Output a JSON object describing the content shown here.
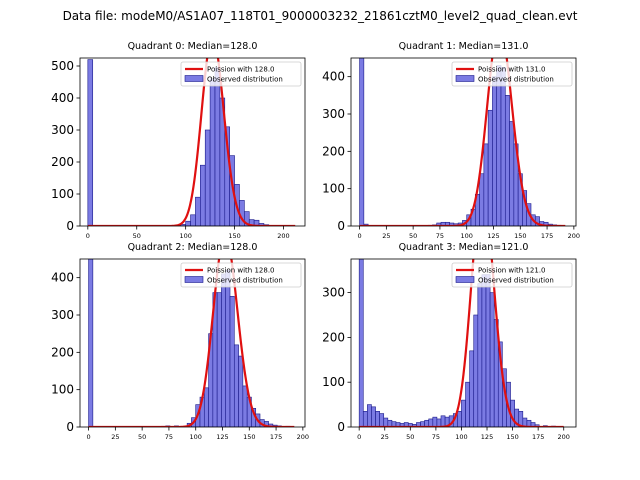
{
  "figure": {
    "suptitle": "Data file: modeM0/AS1A07_118T01_9000003232_21861cztM0_level2_quad_clean.evt"
  },
  "colors": {
    "bar_fill": "#7b7be3",
    "bar_edge": "#1a1a8a",
    "poisson_line": "#e01010",
    "axes": "#000000"
  },
  "chart_data": [
    {
      "type": "bar",
      "title": "Quadrant 0: Median=128.0",
      "median": 128.0,
      "xlim": [
        -8,
        222
      ],
      "ylim": [
        0,
        525
      ],
      "xticks": [
        0,
        50,
        100,
        150,
        200
      ],
      "yticks": [
        0,
        100,
        200,
        300,
        400,
        500
      ],
      "legend": {
        "position": "top-right",
        "line_label": "Poission with 128.0",
        "bar_label": "Observed distribution"
      },
      "bin_width": 5,
      "bins": [
        {
          "x": 0,
          "y": 520
        },
        {
          "x": 65,
          "y": 1
        },
        {
          "x": 75,
          "y": 1
        },
        {
          "x": 85,
          "y": 2
        },
        {
          "x": 90,
          "y": 2
        },
        {
          "x": 95,
          "y": 5
        },
        {
          "x": 100,
          "y": 15
        },
        {
          "x": 105,
          "y": 35
        },
        {
          "x": 110,
          "y": 90
        },
        {
          "x": 115,
          "y": 190
        },
        {
          "x": 120,
          "y": 300
        },
        {
          "x": 125,
          "y": 460
        },
        {
          "x": 130,
          "y": 495
        },
        {
          "x": 135,
          "y": 400
        },
        {
          "x": 140,
          "y": 310
        },
        {
          "x": 145,
          "y": 220
        },
        {
          "x": 150,
          "y": 130
        },
        {
          "x": 155,
          "y": 80
        },
        {
          "x": 160,
          "y": 45
        },
        {
          "x": 165,
          "y": 20
        },
        {
          "x": 170,
          "y": 18
        },
        {
          "x": 175,
          "y": 8
        },
        {
          "x": 180,
          "y": 4
        },
        {
          "x": 185,
          "y": 2
        },
        {
          "x": 195,
          "y": 1
        }
      ],
      "poisson_range": [
        0,
        212
      ]
    },
    {
      "type": "bar",
      "title": "Quadrant 1: Median=131.0",
      "median": 131.0,
      "xlim": [
        -8,
        202
      ],
      "ylim": [
        0,
        450
      ],
      "xticks": [
        0,
        25,
        50,
        75,
        100,
        125,
        150,
        175,
        200
      ],
      "yticks": [
        0,
        100,
        200,
        300,
        400
      ],
      "legend": {
        "position": "top-right",
        "line_label": "Poission with 131.0",
        "bar_label": "Observed distribution"
      },
      "bin_width": 4,
      "bins": [
        {
          "x": 0,
          "y": 450
        },
        {
          "x": 4,
          "y": 5
        },
        {
          "x": 64,
          "y": 2
        },
        {
          "x": 68,
          "y": 3
        },
        {
          "x": 72,
          "y": 8
        },
        {
          "x": 76,
          "y": 10
        },
        {
          "x": 80,
          "y": 10
        },
        {
          "x": 84,
          "y": 8
        },
        {
          "x": 88,
          "y": 6
        },
        {
          "x": 92,
          "y": 8
        },
        {
          "x": 96,
          "y": 15
        },
        {
          "x": 100,
          "y": 30
        },
        {
          "x": 104,
          "y": 45
        },
        {
          "x": 108,
          "y": 85
        },
        {
          "x": 112,
          "y": 140
        },
        {
          "x": 116,
          "y": 220
        },
        {
          "x": 120,
          "y": 310
        },
        {
          "x": 124,
          "y": 400
        },
        {
          "x": 128,
          "y": 430
        },
        {
          "x": 132,
          "y": 425
        },
        {
          "x": 136,
          "y": 350
        },
        {
          "x": 140,
          "y": 280
        },
        {
          "x": 144,
          "y": 220
        },
        {
          "x": 148,
          "y": 140
        },
        {
          "x": 152,
          "y": 95
        },
        {
          "x": 156,
          "y": 60
        },
        {
          "x": 160,
          "y": 30
        },
        {
          "x": 164,
          "y": 25
        },
        {
          "x": 168,
          "y": 12
        },
        {
          "x": 172,
          "y": 10
        },
        {
          "x": 176,
          "y": 5
        },
        {
          "x": 180,
          "y": 3
        },
        {
          "x": 184,
          "y": 2
        }
      ],
      "poisson_range": [
        0,
        192
      ]
    },
    {
      "type": "bar",
      "title": "Quadrant 2: Median=128.0",
      "median": 128.0,
      "xlim": [
        -8,
        202
      ],
      "ylim": [
        0,
        450
      ],
      "xticks": [
        0,
        25,
        50,
        75,
        100,
        125,
        150,
        175,
        200
      ],
      "yticks": [
        0,
        100,
        200,
        300,
        400
      ],
      "legend": {
        "position": "top-right",
        "line_label": "Poission with 128.0",
        "bar_label": "Observed distribution"
      },
      "bin_width": 4,
      "bins": [
        {
          "x": 0,
          "y": 450
        },
        {
          "x": 68,
          "y": 2
        },
        {
          "x": 72,
          "y": 3
        },
        {
          "x": 80,
          "y": 3
        },
        {
          "x": 88,
          "y": 2
        },
        {
          "x": 92,
          "y": 10
        },
        {
          "x": 96,
          "y": 25
        },
        {
          "x": 100,
          "y": 60
        },
        {
          "x": 104,
          "y": 80
        },
        {
          "x": 108,
          "y": 105
        },
        {
          "x": 112,
          "y": 250
        },
        {
          "x": 116,
          "y": 360
        },
        {
          "x": 120,
          "y": 360
        },
        {
          "x": 124,
          "y": 410
        },
        {
          "x": 128,
          "y": 420
        },
        {
          "x": 132,
          "y": 350
        },
        {
          "x": 136,
          "y": 220
        },
        {
          "x": 140,
          "y": 190
        },
        {
          "x": 144,
          "y": 110
        },
        {
          "x": 148,
          "y": 80
        },
        {
          "x": 152,
          "y": 50
        },
        {
          "x": 156,
          "y": 35
        },
        {
          "x": 160,
          "y": 20
        },
        {
          "x": 164,
          "y": 15
        },
        {
          "x": 168,
          "y": 8
        },
        {
          "x": 172,
          "y": 5
        },
        {
          "x": 176,
          "y": 3
        },
        {
          "x": 184,
          "y": 2
        }
      ],
      "poisson_range": [
        0,
        192
      ]
    },
    {
      "type": "bar",
      "title": "Quadrant 3: Median=121.0",
      "median": 121.0,
      "xlim": [
        -8,
        212
      ],
      "ylim": [
        0,
        375
      ],
      "xticks": [
        0,
        25,
        50,
        75,
        100,
        125,
        150,
        175,
        200
      ],
      "yticks": [
        0,
        100,
        200,
        300
      ],
      "legend": {
        "position": "top-right",
        "line_label": "Poission with 121.0",
        "bar_label": "Observed distribution"
      },
      "bin_width": 4,
      "bins": [
        {
          "x": 0,
          "y": 375
        },
        {
          "x": 4,
          "y": 35
        },
        {
          "x": 8,
          "y": 50
        },
        {
          "x": 12,
          "y": 45
        },
        {
          "x": 16,
          "y": 35
        },
        {
          "x": 20,
          "y": 30
        },
        {
          "x": 24,
          "y": 20
        },
        {
          "x": 28,
          "y": 15
        },
        {
          "x": 32,
          "y": 12
        },
        {
          "x": 36,
          "y": 10
        },
        {
          "x": 40,
          "y": 8
        },
        {
          "x": 44,
          "y": 10
        },
        {
          "x": 48,
          "y": 8
        },
        {
          "x": 52,
          "y": 6
        },
        {
          "x": 56,
          "y": 10
        },
        {
          "x": 60,
          "y": 12
        },
        {
          "x": 64,
          "y": 15
        },
        {
          "x": 68,
          "y": 18
        },
        {
          "x": 72,
          "y": 22
        },
        {
          "x": 76,
          "y": 18
        },
        {
          "x": 80,
          "y": 25
        },
        {
          "x": 84,
          "y": 22
        },
        {
          "x": 88,
          "y": 25
        },
        {
          "x": 92,
          "y": 30
        },
        {
          "x": 96,
          "y": 35
        },
        {
          "x": 100,
          "y": 60
        },
        {
          "x": 104,
          "y": 100
        },
        {
          "x": 108,
          "y": 170
        },
        {
          "x": 112,
          "y": 250
        },
        {
          "x": 116,
          "y": 320
        },
        {
          "x": 120,
          "y": 340
        },
        {
          "x": 124,
          "y": 340
        },
        {
          "x": 128,
          "y": 300
        },
        {
          "x": 132,
          "y": 240
        },
        {
          "x": 136,
          "y": 190
        },
        {
          "x": 140,
          "y": 130
        },
        {
          "x": 144,
          "y": 100
        },
        {
          "x": 148,
          "y": 60
        },
        {
          "x": 152,
          "y": 40
        },
        {
          "x": 156,
          "y": 35
        },
        {
          "x": 160,
          "y": 20
        },
        {
          "x": 164,
          "y": 15
        },
        {
          "x": 168,
          "y": 10
        },
        {
          "x": 172,
          "y": 5
        },
        {
          "x": 180,
          "y": 3
        },
        {
          "x": 188,
          "y": 2
        }
      ],
      "poisson_range": [
        0,
        200
      ]
    }
  ]
}
